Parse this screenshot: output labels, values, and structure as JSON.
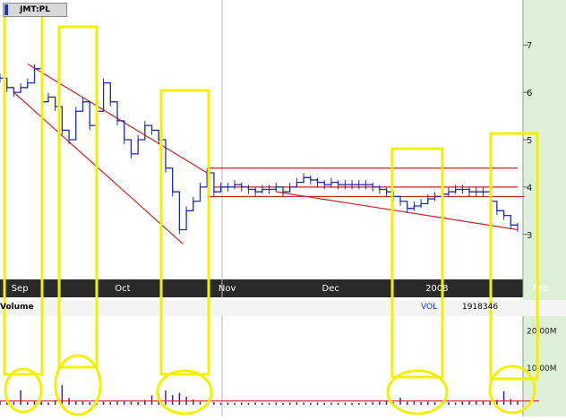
{
  "ticker": "JMT:PL",
  "volume_label": "Volume",
  "vol_tag": "VOL",
  "vol_value": "1918346",
  "colors": {
    "bg_right": "#dff0d8",
    "price": "#1f2fa8",
    "trend": "#cc2222",
    "highlight": "#f2f200",
    "axis_band": "#2a2a2a"
  },
  "chart_data": {
    "type": "line",
    "title": "",
    "xlabel": "",
    "ylabel": "",
    "price_axis": {
      "ylim": [
        2.05,
        7.95
      ],
      "ticks": [
        {
          "value": 7,
          "label": "7"
        },
        {
          "value": 6,
          "label": "6"
        },
        {
          "value": 5,
          "label": "5"
        },
        {
          "value": 4,
          "label": "4"
        },
        {
          "value": 3,
          "label": "3"
        }
      ]
    },
    "x_axis": {
      "days": 170,
      "ticks": [
        {
          "label": "Sep",
          "day": 2
        },
        {
          "label": "Oct",
          "day": 32
        },
        {
          "label": "Nov",
          "day": 62
        },
        {
          "label": "Dec",
          "day": 92
        },
        {
          "label": "2008",
          "day": 122
        },
        {
          "label": "Feb",
          "day": 153
        }
      ]
    },
    "volume_axis": {
      "ylim": [
        0,
        22000000
      ],
      "ticks": [
        {
          "value": 20000000,
          "label": "20.00M"
        },
        {
          "value": 10000000,
          "label": "10.00M"
        }
      ]
    },
    "price_points": [
      [
        0,
        6.3
      ],
      [
        2,
        6.1
      ],
      [
        4,
        6.0
      ],
      [
        6,
        6.1
      ],
      [
        8,
        6.2
      ],
      [
        10,
        6.5
      ],
      [
        12,
        5.8
      ],
      [
        14,
        5.9
      ],
      [
        16,
        5.7
      ],
      [
        18,
        5.2
      ],
      [
        20,
        5.0
      ],
      [
        22,
        5.6
      ],
      [
        24,
        5.8
      ],
      [
        26,
        5.3
      ],
      [
        28,
        5.6
      ],
      [
        30,
        6.2
      ],
      [
        32,
        5.8
      ],
      [
        34,
        5.4
      ],
      [
        36,
        5.0
      ],
      [
        38,
        4.7
      ],
      [
        40,
        5.0
      ],
      [
        42,
        5.3
      ],
      [
        44,
        5.2
      ],
      [
        46,
        5.0
      ],
      [
        48,
        4.4
      ],
      [
        50,
        3.9
      ],
      [
        52,
        3.1
      ],
      [
        54,
        3.5
      ],
      [
        56,
        3.7
      ],
      [
        58,
        4.0
      ],
      [
        60,
        4.3
      ],
      [
        62,
        3.9
      ],
      [
        64,
        4.0
      ],
      [
        66,
        4.0
      ],
      [
        68,
        4.05
      ],
      [
        70,
        4.0
      ],
      [
        72,
        3.95
      ],
      [
        74,
        3.9
      ],
      [
        76,
        3.95
      ],
      [
        78,
        3.95
      ],
      [
        80,
        4.0
      ],
      [
        82,
        3.9
      ],
      [
        84,
        4.0
      ],
      [
        86,
        4.1
      ],
      [
        88,
        4.2
      ],
      [
        90,
        4.15
      ],
      [
        92,
        4.1
      ],
      [
        94,
        4.05
      ],
      [
        96,
        4.1
      ],
      [
        98,
        4.05
      ],
      [
        100,
        4.05
      ],
      [
        102,
        4.05
      ],
      [
        104,
        4.05
      ],
      [
        106,
        4.05
      ],
      [
        108,
        4.0
      ],
      [
        110,
        3.95
      ],
      [
        112,
        3.9
      ],
      [
        114,
        3.8
      ],
      [
        116,
        3.7
      ],
      [
        118,
        3.55
      ],
      [
        120,
        3.6
      ],
      [
        122,
        3.65
      ],
      [
        124,
        3.75
      ],
      [
        126,
        3.8
      ],
      [
        128,
        3.85
      ],
      [
        130,
        3.9
      ],
      [
        132,
        3.95
      ],
      [
        134,
        3.95
      ],
      [
        136,
        3.9
      ],
      [
        138,
        3.9
      ],
      [
        140,
        3.9
      ],
      [
        142,
        3.7
      ],
      [
        144,
        3.5
      ],
      [
        146,
        3.4
      ],
      [
        148,
        3.2
      ],
      [
        150,
        3.15
      ]
    ],
    "volume_points": [
      [
        0,
        1.0
      ],
      [
        2,
        0.6
      ],
      [
        4,
        0.8
      ],
      [
        6,
        3.9
      ],
      [
        8,
        0.7
      ],
      [
        10,
        0.9
      ],
      [
        12,
        0.8
      ],
      [
        14,
        0.6
      ],
      [
        16,
        1.2
      ],
      [
        18,
        5.3
      ],
      [
        20,
        1.8
      ],
      [
        22,
        1.0
      ],
      [
        24,
        0.9
      ],
      [
        26,
        0.7
      ],
      [
        28,
        0.6
      ],
      [
        30,
        0.8
      ],
      [
        32,
        0.7
      ],
      [
        34,
        0.9
      ],
      [
        36,
        1.0
      ],
      [
        38,
        0.8
      ],
      [
        40,
        0.7
      ],
      [
        42,
        1.3
      ],
      [
        44,
        2.5
      ],
      [
        46,
        2.9
      ],
      [
        48,
        3.8
      ],
      [
        50,
        2.6
      ],
      [
        52,
        3.2
      ],
      [
        54,
        2.1
      ],
      [
        56,
        1.4
      ],
      [
        58,
        0.8
      ],
      [
        60,
        0.6
      ],
      [
        62,
        0.7
      ],
      [
        64,
        0.5
      ],
      [
        66,
        0.6
      ],
      [
        68,
        0.5
      ],
      [
        70,
        0.6
      ],
      [
        72,
        0.5
      ],
      [
        74,
        0.6
      ],
      [
        76,
        0.5
      ],
      [
        78,
        0.5
      ],
      [
        80,
        0.6
      ],
      [
        82,
        0.5
      ],
      [
        84,
        0.6
      ],
      [
        86,
        0.7
      ],
      [
        88,
        0.6
      ],
      [
        90,
        0.5
      ],
      [
        92,
        0.6
      ],
      [
        94,
        0.5
      ],
      [
        96,
        0.6
      ],
      [
        98,
        0.5
      ],
      [
        100,
        0.6
      ],
      [
        102,
        0.5
      ],
      [
        104,
        0.5
      ],
      [
        106,
        0.6
      ],
      [
        108,
        0.7
      ],
      [
        110,
        0.8
      ],
      [
        112,
        1.0
      ],
      [
        114,
        0.7
      ],
      [
        116,
        1.9
      ],
      [
        118,
        0.8
      ],
      [
        120,
        0.9
      ],
      [
        122,
        0.7
      ],
      [
        124,
        0.8
      ],
      [
        126,
        0.7
      ],
      [
        128,
        0.6
      ],
      [
        130,
        0.7
      ],
      [
        132,
        0.6
      ],
      [
        134,
        0.8
      ],
      [
        136,
        0.9
      ],
      [
        138,
        1.0
      ],
      [
        140,
        1.1
      ],
      [
        142,
        0.9
      ],
      [
        144,
        1.3
      ],
      [
        146,
        3.6
      ],
      [
        148,
        1.5
      ],
      [
        150,
        1.1
      ]
    ],
    "trend_lines": [
      {
        "from": [
          4,
          6.0
        ],
        "to": [
          53,
          2.8
        ]
      },
      {
        "from": [
          8,
          6.6
        ],
        "to": [
          60,
          4.3
        ]
      },
      {
        "from": [
          60,
          4.4
        ],
        "to": [
          150,
          4.4
        ]
      },
      {
        "from": [
          62,
          4.0
        ],
        "to": [
          150,
          4.0
        ]
      },
      {
        "from": [
          60,
          3.8
        ],
        "to": [
          152,
          3.8
        ]
      },
      {
        "from": [
          80,
          3.9
        ],
        "to": [
          150,
          3.1
        ]
      }
    ],
    "volume_baseline": 0.2
  }
}
